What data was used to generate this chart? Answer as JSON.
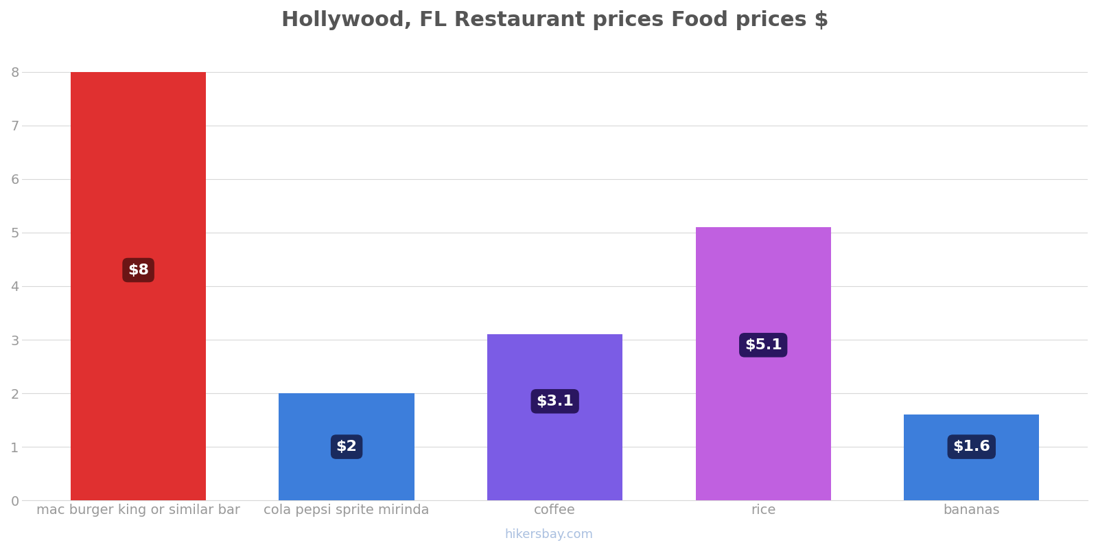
{
  "title": "Hollywood, FL Restaurant prices Food prices $",
  "categories": [
    "mac burger king or similar bar",
    "cola pepsi sprite mirinda",
    "coffee",
    "rice",
    "bananas"
  ],
  "values": [
    8.0,
    2.0,
    3.1,
    5.1,
    1.6
  ],
  "bar_colors": [
    "#e03030",
    "#3d7edb",
    "#7b5ce5",
    "#c060e0",
    "#3d7edb"
  ],
  "label_texts": [
    "$8",
    "$2",
    "$3.1",
    "$5.1",
    "$1.6"
  ],
  "label_box_colors": [
    "#6b1515",
    "#1a2a5e",
    "#2a1660",
    "#2a1660",
    "#1a2a5e"
  ],
  "label_y_positions": [
    4.3,
    1.0,
    1.85,
    2.9,
    1.0
  ],
  "ylim": [
    0,
    8.5
  ],
  "yticks": [
    0,
    1,
    2,
    3,
    4,
    5,
    6,
    7,
    8
  ],
  "title_fontsize": 22,
  "tick_fontsize": 14,
  "label_fontsize": 16,
  "watermark": "hikersbay.com",
  "background_color": "#ffffff",
  "grid_color": "#d8d8d8",
  "title_color": "#555555",
  "tick_color": "#999999",
  "watermark_color": "#aac0e0",
  "bar_width": 0.65
}
